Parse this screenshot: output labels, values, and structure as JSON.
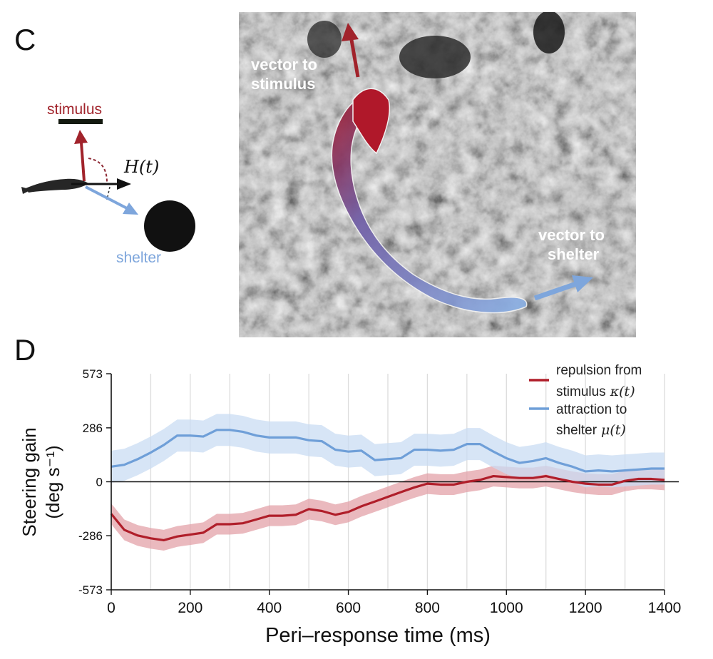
{
  "panel_c": {
    "label": "C",
    "diagram": {
      "stimulus_label": "stimulus",
      "heading_label": "H(t)",
      "shelter_label": "shelter"
    },
    "photo": {
      "vector_to_stimulus_line1": "vector to",
      "vector_to_stimulus_line2": "stimulus",
      "vector_to_shelter_line1": "vector to",
      "vector_to_shelter_line2": "shelter"
    }
  },
  "panel_d": {
    "label": "D"
  },
  "colors": {
    "repulsion": "#b01e2a",
    "repulsion_band": "#e3a2a8",
    "attraction": "#6f9fd8",
    "attraction_band": "#c9dcf3",
    "stimulus_text": "#a1232b",
    "shelter_text": "#7ea6dc"
  },
  "chart_data": {
    "type": "line",
    "xlabel": "Peri–response time (ms)",
    "ylabel_line1": "Steering gain",
    "ylabel_line2": "(deg s⁻¹)",
    "xlim": [
      0,
      1400
    ],
    "ylim": [
      -573,
      573
    ],
    "x_ticks": [
      0,
      200,
      400,
      600,
      800,
      1000,
      1200,
      1400
    ],
    "y_ticks": [
      -573,
      -286,
      0,
      286,
      573
    ],
    "vertical_grid": [
      100,
      200,
      300,
      400,
      500,
      600,
      700,
      800,
      900,
      1000,
      1100,
      1200,
      1300,
      1400
    ],
    "zero_line": 0,
    "x": [
      0,
      33,
      67,
      100,
      133,
      167,
      200,
      233,
      267,
      300,
      333,
      367,
      400,
      433,
      467,
      500,
      533,
      567,
      600,
      633,
      667,
      700,
      733,
      767,
      800,
      833,
      867,
      900,
      933,
      967,
      1000,
      1033,
      1067,
      1100,
      1133,
      1167,
      1200,
      1233,
      1267,
      1300,
      1333,
      1367,
      1400
    ],
    "series": [
      {
        "name": "repulsion from stimulus",
        "legend_line1": "repulsion from",
        "legend_line2": "stimulus",
        "legend_math": "κ(t)",
        "values": [
          -170,
          -255,
          -285,
          -300,
          -310,
          -290,
          -280,
          -270,
          -225,
          -225,
          -220,
          -200,
          -180,
          -180,
          -175,
          -145,
          -155,
          -175,
          -160,
          -130,
          -105,
          -80,
          -55,
          -30,
          -10,
          -15,
          -15,
          0,
          10,
          30,
          25,
          20,
          20,
          30,
          15,
          0,
          -10,
          -15,
          -15,
          5,
          15,
          15,
          10
        ],
        "band": 55
      },
      {
        "name": "attraction to shelter",
        "legend_line1": "attraction to",
        "legend_line2": "shelter",
        "legend_math": "μ(t)",
        "values": [
          80,
          90,
          120,
          155,
          195,
          245,
          245,
          240,
          275,
          275,
          265,
          245,
          235,
          235,
          235,
          220,
          215,
          170,
          160,
          165,
          115,
          120,
          125,
          170,
          170,
          165,
          170,
          200,
          200,
          160,
          125,
          100,
          110,
          125,
          100,
          80,
          55,
          60,
          55,
          60,
          65,
          70,
          70
        ],
        "band": 85
      }
    ]
  }
}
